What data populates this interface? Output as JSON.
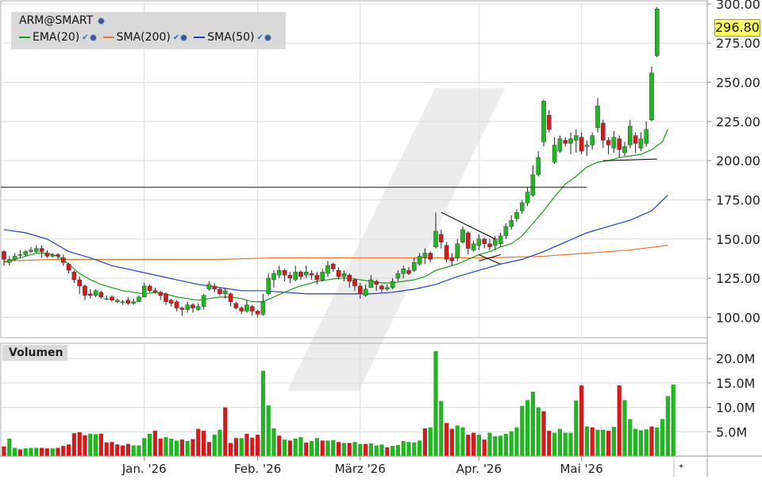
{
  "symbol": "ARM@SMART",
  "last_price": "296.80",
  "legend": [
    {
      "label": "EMA(20)",
      "color": "#1a9e1a"
    },
    {
      "label": "SMA(200)",
      "color": "#e8772a"
    },
    {
      "label": "SMA(50)",
      "color": "#2340c8"
    }
  ],
  "volume_label": "Volumen",
  "colors": {
    "up": "#22b422",
    "down": "#d01c1c",
    "ema20": "#1a9e1a",
    "sma200": "#e8772a",
    "sma50": "#2340c8",
    "grid": "#dcdcdc",
    "trendline": "#000000"
  },
  "chart_data": {
    "type": "candlestick",
    "title": "ARM@SMART",
    "price_axis": {
      "ticks": [
        "100.00",
        "125.00",
        "150.00",
        "175.00",
        "200.00",
        "225.00",
        "250.00",
        "275.00",
        "300.00"
      ],
      "ylim": [
        87,
        302
      ]
    },
    "volume_axis": {
      "ticks": [
        "5.0M",
        "10.0M",
        "15.0M",
        "20.0M"
      ],
      "ylim": [
        0,
        21.5
      ]
    },
    "x_labels": [
      {
        "label": "Jan. '26",
        "index": 26
      },
      {
        "label": "Feb. '26",
        "index": 47
      },
      {
        "label": "März '26",
        "index": 66
      },
      {
        "label": "Apr. '26",
        "index": 88
      },
      {
        "label": "Mai '26",
        "index": 107
      }
    ],
    "horizontal_line": 183,
    "trendlines": [
      {
        "points": [
          [
            81,
            167
          ],
          [
            91,
            150
          ]
        ]
      },
      {
        "points": [
          [
            88,
            136
          ],
          [
            92,
            140
          ]
        ]
      },
      {
        "points": [
          [
            88,
            140
          ],
          [
            92,
            134
          ]
        ]
      },
      {
        "points": [
          [
            111,
            200
          ],
          [
            121,
            201
          ]
        ]
      }
    ],
    "candles": [
      [
        142,
        137,
        143,
        133
      ],
      [
        135,
        137,
        139,
        133
      ],
      [
        137,
        139,
        141,
        136
      ],
      [
        140,
        140,
        143,
        138
      ],
      [
        140,
        142,
        143,
        139
      ],
      [
        142,
        143,
        145,
        141
      ],
      [
        142,
        144,
        146,
        141
      ],
      [
        144,
        142,
        146,
        138
      ],
      [
        141,
        139,
        143,
        138
      ],
      [
        139,
        140,
        141,
        138
      ],
      [
        140,
        139,
        141,
        137
      ],
      [
        138,
        135,
        140,
        133
      ],
      [
        134,
        130,
        135,
        128
      ],
      [
        129,
        124,
        130,
        122
      ],
      [
        124,
        120,
        126,
        115
      ],
      [
        120,
        114,
        121,
        111
      ],
      [
        115,
        114,
        118,
        112
      ],
      [
        114,
        117,
        118,
        113
      ],
      [
        116,
        113,
        117,
        112
      ],
      [
        112,
        112,
        114,
        111
      ],
      [
        113,
        111,
        114,
        110
      ],
      [
        110,
        111,
        112,
        109
      ],
      [
        110,
        110,
        111,
        108
      ],
      [
        111,
        109,
        113,
        108
      ],
      [
        109,
        110,
        112,
        108
      ],
      [
        110,
        113,
        114,
        110
      ],
      [
        113,
        120,
        122,
        113
      ],
      [
        120,
        117,
        121,
        116
      ],
      [
        117,
        116,
        119,
        115
      ],
      [
        116,
        114,
        117,
        111
      ],
      [
        115,
        110,
        116,
        108
      ],
      [
        111,
        109,
        112,
        107
      ],
      [
        110,
        106,
        111,
        104
      ],
      [
        106,
        105,
        107,
        101
      ],
      [
        105,
        108,
        110,
        103
      ],
      [
        108,
        106,
        109,
        103
      ],
      [
        105,
        107,
        109,
        104
      ],
      [
        107,
        114,
        115,
        105
      ],
      [
        118,
        121,
        123,
        117
      ],
      [
        120,
        118,
        122,
        116
      ],
      [
        118,
        115,
        119,
        114
      ],
      [
        115,
        117,
        119,
        112
      ],
      [
        115,
        110,
        116,
        107
      ],
      [
        109,
        106,
        110,
        105
      ],
      [
        106,
        104,
        107,
        102
      ],
      [
        104,
        108,
        111,
        103
      ],
      [
        107,
        104,
        108,
        101
      ],
      [
        104,
        102,
        105,
        100
      ],
      [
        102,
        110,
        115,
        101
      ],
      [
        115,
        125,
        128,
        114
      ],
      [
        124,
        128,
        130,
        119
      ],
      [
        127,
        130,
        133,
        125
      ],
      [
        130,
        127,
        131,
        123
      ],
      [
        127,
        125,
        129,
        122
      ],
      [
        124,
        129,
        133,
        123
      ],
      [
        129,
        126,
        130,
        124
      ],
      [
        127,
        129,
        133,
        125
      ],
      [
        128,
        127,
        130,
        124
      ],
      [
        127,
        124,
        129,
        121
      ],
      [
        124,
        129,
        131,
        123
      ],
      [
        128,
        133,
        136,
        126
      ],
      [
        134,
        131,
        135,
        129
      ],
      [
        130,
        126,
        132,
        124
      ],
      [
        126,
        128,
        130,
        123
      ],
      [
        127,
        123,
        128,
        119
      ],
      [
        124,
        120,
        125,
        117
      ],
      [
        120,
        115,
        122,
        112
      ],
      [
        114,
        118,
        121,
        113
      ],
      [
        119,
        124,
        127,
        119
      ],
      [
        123,
        121,
        124,
        117
      ],
      [
        120,
        118,
        121,
        116
      ],
      [
        118,
        119,
        121,
        117
      ],
      [
        119,
        123,
        125,
        118
      ],
      [
        125,
        128,
        130,
        123
      ],
      [
        128,
        131,
        133,
        125
      ],
      [
        130,
        128,
        132,
        127
      ],
      [
        130,
        135,
        138,
        129
      ],
      [
        134,
        139,
        141,
        133
      ],
      [
        138,
        141,
        144,
        134
      ],
      [
        141,
        137,
        142,
        135
      ],
      [
        145,
        155,
        167,
        144
      ],
      [
        153,
        148,
        156,
        144
      ],
      [
        146,
        137,
        148,
        135
      ],
      [
        138,
        136,
        141,
        133
      ],
      [
        138,
        147,
        150,
        136
      ],
      [
        148,
        156,
        158,
        147
      ],
      [
        154,
        144,
        155,
        140
      ],
      [
        143,
        147,
        149,
        142
      ],
      [
        146,
        150,
        153,
        143
      ],
      [
        150,
        147,
        151,
        144
      ],
      [
        147,
        145,
        150,
        143
      ],
      [
        146,
        150,
        152,
        143
      ],
      [
        147,
        152,
        154,
        145
      ],
      [
        152,
        158,
        160,
        150
      ],
      [
        158,
        162,
        165,
        156
      ],
      [
        163,
        167,
        169,
        161
      ],
      [
        168,
        173,
        175,
        166
      ],
      [
        173,
        180,
        183,
        171
      ],
      [
        178,
        191,
        197,
        177
      ],
      [
        191,
        202,
        206,
        190
      ],
      [
        212,
        238,
        239,
        209
      ],
      [
        229,
        220,
        232,
        218
      ],
      [
        199,
        210,
        215,
        198
      ],
      [
        206,
        214,
        216,
        205
      ],
      [
        213,
        211,
        215,
        209
      ],
      [
        211,
        214,
        218,
        204
      ],
      [
        213,
        216,
        220,
        205
      ],
      [
        215,
        206,
        218,
        204
      ],
      [
        209,
        210,
        213,
        203
      ],
      [
        210,
        216,
        218,
        207
      ],
      [
        221,
        235,
        240,
        218
      ],
      [
        224,
        213,
        226,
        208
      ],
      [
        213,
        210,
        215,
        204
      ],
      [
        208,
        215,
        219,
        205
      ],
      [
        214,
        207,
        216,
        202
      ],
      [
        205,
        209,
        212,
        203
      ],
      [
        210,
        222,
        226,
        208
      ],
      [
        216,
        211,
        218,
        205
      ],
      [
        208,
        214,
        218,
        206
      ],
      [
        211,
        220,
        225,
        209
      ],
      [
        226,
        256,
        260,
        225
      ],
      [
        267,
        296.8,
        298,
        266
      ]
    ],
    "volume": [
      [
        2,
        0
      ],
      [
        3.6,
        1
      ],
      [
        1.7,
        1
      ],
      [
        1.4,
        0
      ],
      [
        1.6,
        1
      ],
      [
        1.7,
        1
      ],
      [
        1.7,
        1
      ],
      [
        1.7,
        0
      ],
      [
        1.6,
        0
      ],
      [
        1.6,
        1
      ],
      [
        1.7,
        0
      ],
      [
        2.1,
        0
      ],
      [
        2.4,
        0
      ],
      [
        4.7,
        0
      ],
      [
        4.9,
        0
      ],
      [
        4.3,
        0
      ],
      [
        4.6,
        1
      ],
      [
        4.5,
        1
      ],
      [
        4.6,
        0
      ],
      [
        2.8,
        0
      ],
      [
        2.9,
        0
      ],
      [
        2.4,
        0
      ],
      [
        2.2,
        0
      ],
      [
        2.5,
        0
      ],
      [
        2.2,
        1
      ],
      [
        2.2,
        1
      ],
      [
        3.7,
        1
      ],
      [
        4.6,
        1
      ],
      [
        5.2,
        0
      ],
      [
        3.6,
        0
      ],
      [
        3.9,
        1
      ],
      [
        3.6,
        1
      ],
      [
        3.2,
        1
      ],
      [
        3.4,
        0
      ],
      [
        3.1,
        1
      ],
      [
        3.5,
        0
      ],
      [
        5.6,
        0
      ],
      [
        5.2,
        0
      ],
      [
        2.9,
        0
      ],
      [
        4.4,
        1
      ],
      [
        5.4,
        1
      ],
      [
        10,
        0
      ],
      [
        2.7,
        0
      ],
      [
        3.7,
        0
      ],
      [
        3.7,
        1
      ],
      [
        4.6,
        0
      ],
      [
        3.8,
        0
      ],
      [
        4.4,
        0
      ],
      [
        17.5,
        1
      ],
      [
        10.4,
        1
      ],
      [
        5.7,
        1
      ],
      [
        4.2,
        0
      ],
      [
        3.4,
        1
      ],
      [
        3.2,
        0
      ],
      [
        3.6,
        1
      ],
      [
        3.9,
        1
      ],
      [
        2.8,
        0
      ],
      [
        3.1,
        1
      ],
      [
        3.7,
        1
      ],
      [
        3.2,
        0
      ],
      [
        3.2,
        1
      ],
      [
        3.3,
        1
      ],
      [
        2.9,
        0
      ],
      [
        2.7,
        1
      ],
      [
        2.7,
        0
      ],
      [
        2.9,
        1
      ],
      [
        2.5,
        1
      ],
      [
        2.5,
        0
      ],
      [
        2.6,
        1
      ],
      [
        2.2,
        1
      ],
      [
        2.4,
        1
      ],
      [
        1.8,
        0
      ],
      [
        2.1,
        1
      ],
      [
        2.3,
        1
      ],
      [
        3.1,
        1
      ],
      [
        2.9,
        1
      ],
      [
        2.8,
        1
      ],
      [
        3.2,
        1
      ],
      [
        5.7,
        0
      ],
      [
        5.9,
        1
      ],
      [
        21.5,
        1
      ],
      [
        11.3,
        1
      ],
      [
        6.8,
        0
      ],
      [
        5.6,
        0
      ],
      [
        6.3,
        1
      ],
      [
        5.9,
        1
      ],
      [
        4.4,
        0
      ],
      [
        4.8,
        0
      ],
      [
        4.4,
        1
      ],
      [
        3.4,
        0
      ],
      [
        4.8,
        1
      ],
      [
        4.1,
        1
      ],
      [
        4.2,
        1
      ],
      [
        4.6,
        1
      ],
      [
        5.1,
        1
      ],
      [
        5.9,
        1
      ],
      [
        10.3,
        1
      ],
      [
        11.5,
        1
      ],
      [
        13.2,
        1
      ],
      [
        10,
        1
      ],
      [
        9.2,
        0
      ],
      [
        5.2,
        0
      ],
      [
        4.8,
        1
      ],
      [
        5.6,
        1
      ],
      [
        4.8,
        1
      ],
      [
        4.8,
        1
      ],
      [
        11.4,
        1
      ],
      [
        14.5,
        0
      ],
      [
        6.1,
        1
      ],
      [
        5.9,
        0
      ],
      [
        5.4,
        1
      ],
      [
        5.4,
        1
      ],
      [
        5.2,
        0
      ],
      [
        6,
        1
      ],
      [
        14.5,
        0
      ],
      [
        11.5,
        1
      ],
      [
        7.6,
        1
      ],
      [
        5.6,
        1
      ],
      [
        5.3,
        1
      ],
      [
        5.5,
        1
      ],
      [
        6.1,
        0
      ],
      [
        5.9,
        1
      ],
      [
        7.6,
        1
      ],
      [
        12.3,
        1
      ],
      [
        14.7,
        1
      ]
    ],
    "ema20": [
      [
        0,
        135
      ],
      [
        2,
        137
      ],
      [
        4,
        139
      ],
      [
        6,
        141
      ],
      [
        8,
        141
      ],
      [
        10,
        139
      ],
      [
        12,
        134
      ],
      [
        14,
        128
      ],
      [
        16,
        124
      ],
      [
        18,
        121
      ],
      [
        20,
        119
      ],
      [
        22,
        117
      ],
      [
        24,
        116
      ],
      [
        26,
        115
      ],
      [
        28,
        116
      ],
      [
        30,
        115
      ],
      [
        32,
        113
      ],
      [
        34,
        112
      ],
      [
        36,
        111
      ],
      [
        38,
        112
      ],
      [
        40,
        113
      ],
      [
        42,
        113
      ],
      [
        44,
        112
      ],
      [
        46,
        110
      ],
      [
        48,
        110
      ],
      [
        50,
        113
      ],
      [
        52,
        116
      ],
      [
        54,
        119
      ],
      [
        56,
        121
      ],
      [
        58,
        123
      ],
      [
        60,
        124
      ],
      [
        62,
        125
      ],
      [
        64,
        125
      ],
      [
        66,
        124
      ],
      [
        68,
        123
      ],
      [
        70,
        122
      ],
      [
        72,
        122
      ],
      [
        74,
        123
      ],
      [
        76,
        124
      ],
      [
        78,
        126
      ],
      [
        80,
        130
      ],
      [
        82,
        132
      ],
      [
        84,
        134
      ],
      [
        86,
        137
      ],
      [
        88,
        140
      ],
      [
        90,
        142
      ],
      [
        92,
        145
      ],
      [
        94,
        147
      ],
      [
        96,
        152
      ],
      [
        98,
        160
      ],
      [
        100,
        168
      ],
      [
        102,
        177
      ],
      [
        104,
        185
      ],
      [
        106,
        190
      ],
      [
        108,
        196
      ],
      [
        110,
        199
      ],
      [
        112,
        200
      ],
      [
        114,
        202
      ],
      [
        116,
        203
      ],
      [
        118,
        204
      ],
      [
        120,
        207
      ],
      [
        122,
        212
      ],
      [
        123,
        220
      ]
    ],
    "sma50": [
      [
        0,
        156
      ],
      [
        4,
        154
      ],
      [
        8,
        150
      ],
      [
        12,
        142
      ],
      [
        16,
        138
      ],
      [
        20,
        133
      ],
      [
        24,
        130
      ],
      [
        28,
        127
      ],
      [
        32,
        124
      ],
      [
        36,
        121
      ],
      [
        40,
        119
      ],
      [
        44,
        117
      ],
      [
        48,
        117
      ],
      [
        52,
        116
      ],
      [
        56,
        115
      ],
      [
        60,
        115
      ],
      [
        64,
        115
      ],
      [
        68,
        115
      ],
      [
        72,
        116
      ],
      [
        76,
        118
      ],
      [
        80,
        121
      ],
      [
        84,
        126
      ],
      [
        88,
        130
      ],
      [
        92,
        134
      ],
      [
        96,
        137
      ],
      [
        100,
        142
      ],
      [
        104,
        148
      ],
      [
        108,
        154
      ],
      [
        112,
        158
      ],
      [
        116,
        162
      ],
      [
        120,
        168
      ],
      [
        123,
        178
      ]
    ],
    "sma200": [
      [
        0,
        136
      ],
      [
        10,
        137
      ],
      [
        20,
        137
      ],
      [
        30,
        137
      ],
      [
        40,
        137
      ],
      [
        50,
        138
      ],
      [
        60,
        138
      ],
      [
        70,
        138
      ],
      [
        80,
        138
      ],
      [
        90,
        138
      ],
      [
        100,
        139
      ],
      [
        108,
        141
      ],
      [
        116,
        143
      ],
      [
        123,
        146
      ]
    ]
  }
}
